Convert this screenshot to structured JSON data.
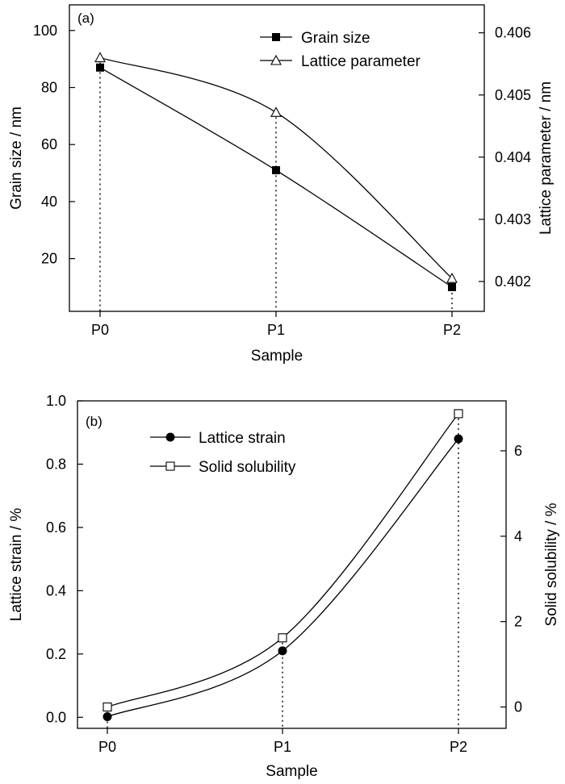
{
  "chart_data": [
    {
      "type": "line",
      "panel_label": "(a)",
      "xlabel": "Sample",
      "categories": [
        "P0",
        "P1",
        "P2"
      ],
      "ylabel_left": "Grain size / nm",
      "ylabel_right": "Lattice parameter / nm",
      "ylim_left": [
        1.5,
        109
      ],
      "ylim_right": [
        0.40152,
        0.40645
      ],
      "yticks_left": [
        "20",
        "40",
        "60",
        "80",
        "100"
      ],
      "yticks_left_values": [
        20,
        40,
        60,
        80,
        100
      ],
      "yticks_right": [
        "0.402",
        "0.403",
        "0.404",
        "0.405",
        "0.406"
      ],
      "yticks_right_values": [
        0.402,
        0.403,
        0.404,
        0.405,
        0.406
      ],
      "grid": false,
      "legend_position": "top-right",
      "series": [
        {
          "name": "Grain size",
          "axis": "left",
          "marker": "filled-square",
          "values": [
            87,
            51,
            10
          ]
        },
        {
          "name": "Lattice parameter",
          "axis": "right",
          "marker": "open-triangle",
          "values": [
            0.4056,
            0.40472,
            0.40205
          ]
        }
      ]
    },
    {
      "type": "line",
      "panel_label": "(b)",
      "xlabel": "Sample",
      "categories": [
        "P0",
        "P1",
        "P2"
      ],
      "ylabel_left": "Lattice strain / %",
      "ylabel_right": "Solid solubility / %",
      "ylim_left": [
        -0.035,
        1.0
      ],
      "ylim_right": [
        -0.5,
        7.17
      ],
      "yticks_left": [
        "0.0",
        "0.2",
        "0.4",
        "0.6",
        "0.8",
        "1.0"
      ],
      "yticks_left_values": [
        0,
        0.2,
        0.4,
        0.6,
        0.8,
        1.0
      ],
      "yticks_right": [
        "0",
        "2",
        "4",
        "6"
      ],
      "yticks_right_values": [
        0,
        2,
        4,
        6
      ],
      "grid": false,
      "legend_position": "top-left",
      "series": [
        {
          "name": "Lattice strain",
          "axis": "left",
          "marker": "filled-circle",
          "values": [
            0.002,
            0.21,
            0.88
          ]
        },
        {
          "name": "Solid solubility",
          "axis": "right",
          "marker": "open-square",
          "values": [
            0.0,
            1.62,
            6.87
          ]
        }
      ]
    }
  ]
}
